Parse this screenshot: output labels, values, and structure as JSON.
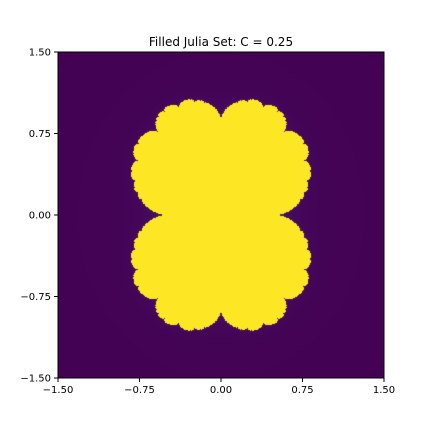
{
  "chart_data": {
    "type": "heatmap",
    "title": "Filled Julia Set: C = 0.25",
    "xlabel": "",
    "ylabel": "",
    "c": 0.25,
    "colormap": "viridis",
    "xlim": [
      -1.5,
      1.5
    ],
    "ylim": [
      -1.5,
      1.5
    ],
    "xticks": [
      -1.5,
      -0.75,
      0.0,
      0.75,
      1.5
    ],
    "xtick_labels": [
      "−1.50",
      "−0.75",
      "0.00",
      "0.75",
      "1.50"
    ],
    "yticks": [
      -1.5,
      -0.75,
      0.0,
      0.75,
      1.5
    ],
    "ytick_labels": [
      "−1.50",
      "−0.75",
      "0.00",
      "0.75",
      "1.50"
    ],
    "grid": false,
    "legend": "none",
    "colors": {
      "inside": "#fde725",
      "background": "#440154",
      "halo": "#482475"
    }
  }
}
